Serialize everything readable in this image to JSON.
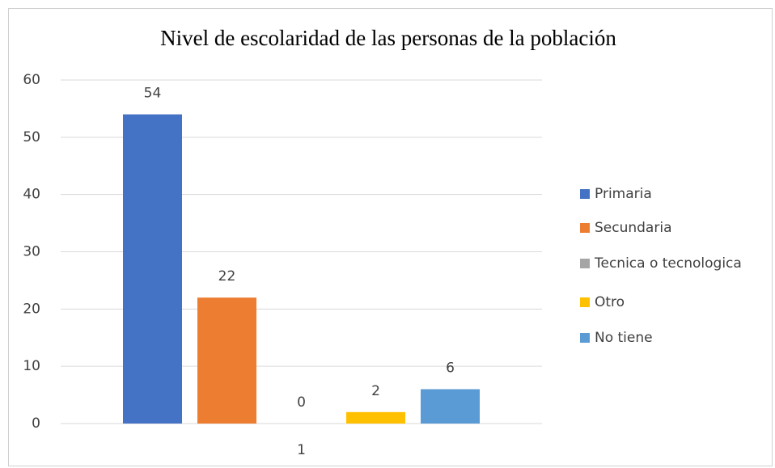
{
  "chart_data": {
    "type": "bar",
    "title": "Nivel de escolaridad de las personas de la población",
    "categories": [
      "1"
    ],
    "series": [
      {
        "name": "Primaria",
        "color": "#4472c4",
        "values": [
          54
        ]
      },
      {
        "name": "Secundaria",
        "color": "#ed7d31",
        "values": [
          22
        ]
      },
      {
        "name": "Tecnica o tecnologica",
        "color": "#a5a5a5",
        "values": [
          0
        ]
      },
      {
        "name": "Otro",
        "color": "#ffc000",
        "values": [
          2
        ]
      },
      {
        "name": "No tiene",
        "color": "#5b9bd5",
        "values": [
          6
        ]
      }
    ],
    "ylim": [
      0,
      60
    ],
    "yticks": [
      0,
      10,
      20,
      30,
      40,
      50,
      60
    ],
    "grid": true,
    "legend": "right"
  }
}
